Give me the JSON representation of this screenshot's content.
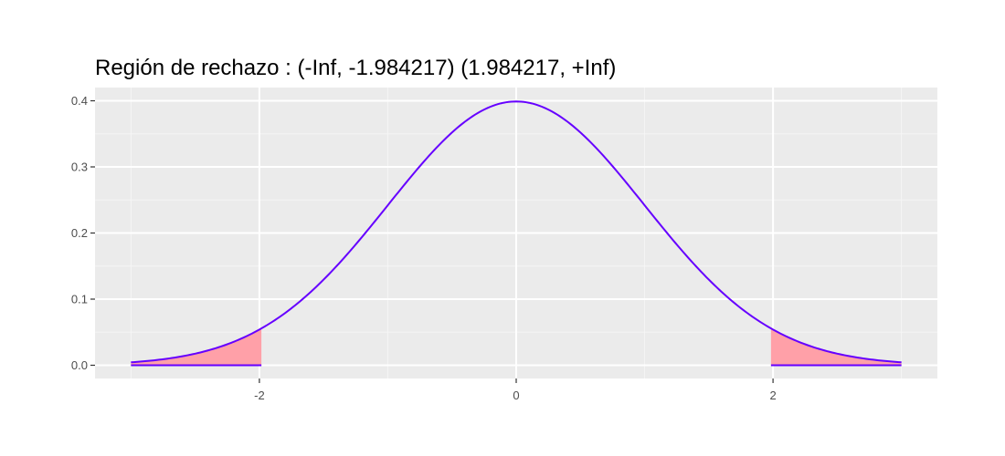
{
  "chart_data": {
    "type": "area",
    "title": "Región de rechazo : (-Inf, -1.984217)  (1.984217, +Inf)",
    "xlabel": "",
    "ylabel": "",
    "xlim": [
      -3.28,
      3.28
    ],
    "ylim": [
      -0.02,
      0.42
    ],
    "x_ticks": [
      -2,
      0,
      2
    ],
    "x_tick_labels": [
      "-2",
      "0",
      "2"
    ],
    "y_ticks": [
      0.0,
      0.1,
      0.2,
      0.3,
      0.4
    ],
    "y_tick_labels": [
      "0.0",
      "0.1",
      "0.2",
      "0.3",
      "0.4"
    ],
    "grid": true,
    "legend": "none",
    "series": [
      {
        "distribution": "standard normal density",
        "x_range": [
          -3,
          3
        ],
        "color": "#6600ff"
      }
    ],
    "rejection_regions": [
      {
        "from": -3,
        "to": -1.984217,
        "color": "#ffa0a8"
      },
      {
        "from": 1.984217,
        "to": 3,
        "color": "#ffa0a8"
      }
    ],
    "colors": {
      "panel_background": "#ebebeb",
      "grid_major": "#ffffff",
      "grid_minor": "#f5f5f5",
      "curve": "#6600ff",
      "rejection_fill": "#ffa0a8",
      "tick": "#333333"
    }
  }
}
